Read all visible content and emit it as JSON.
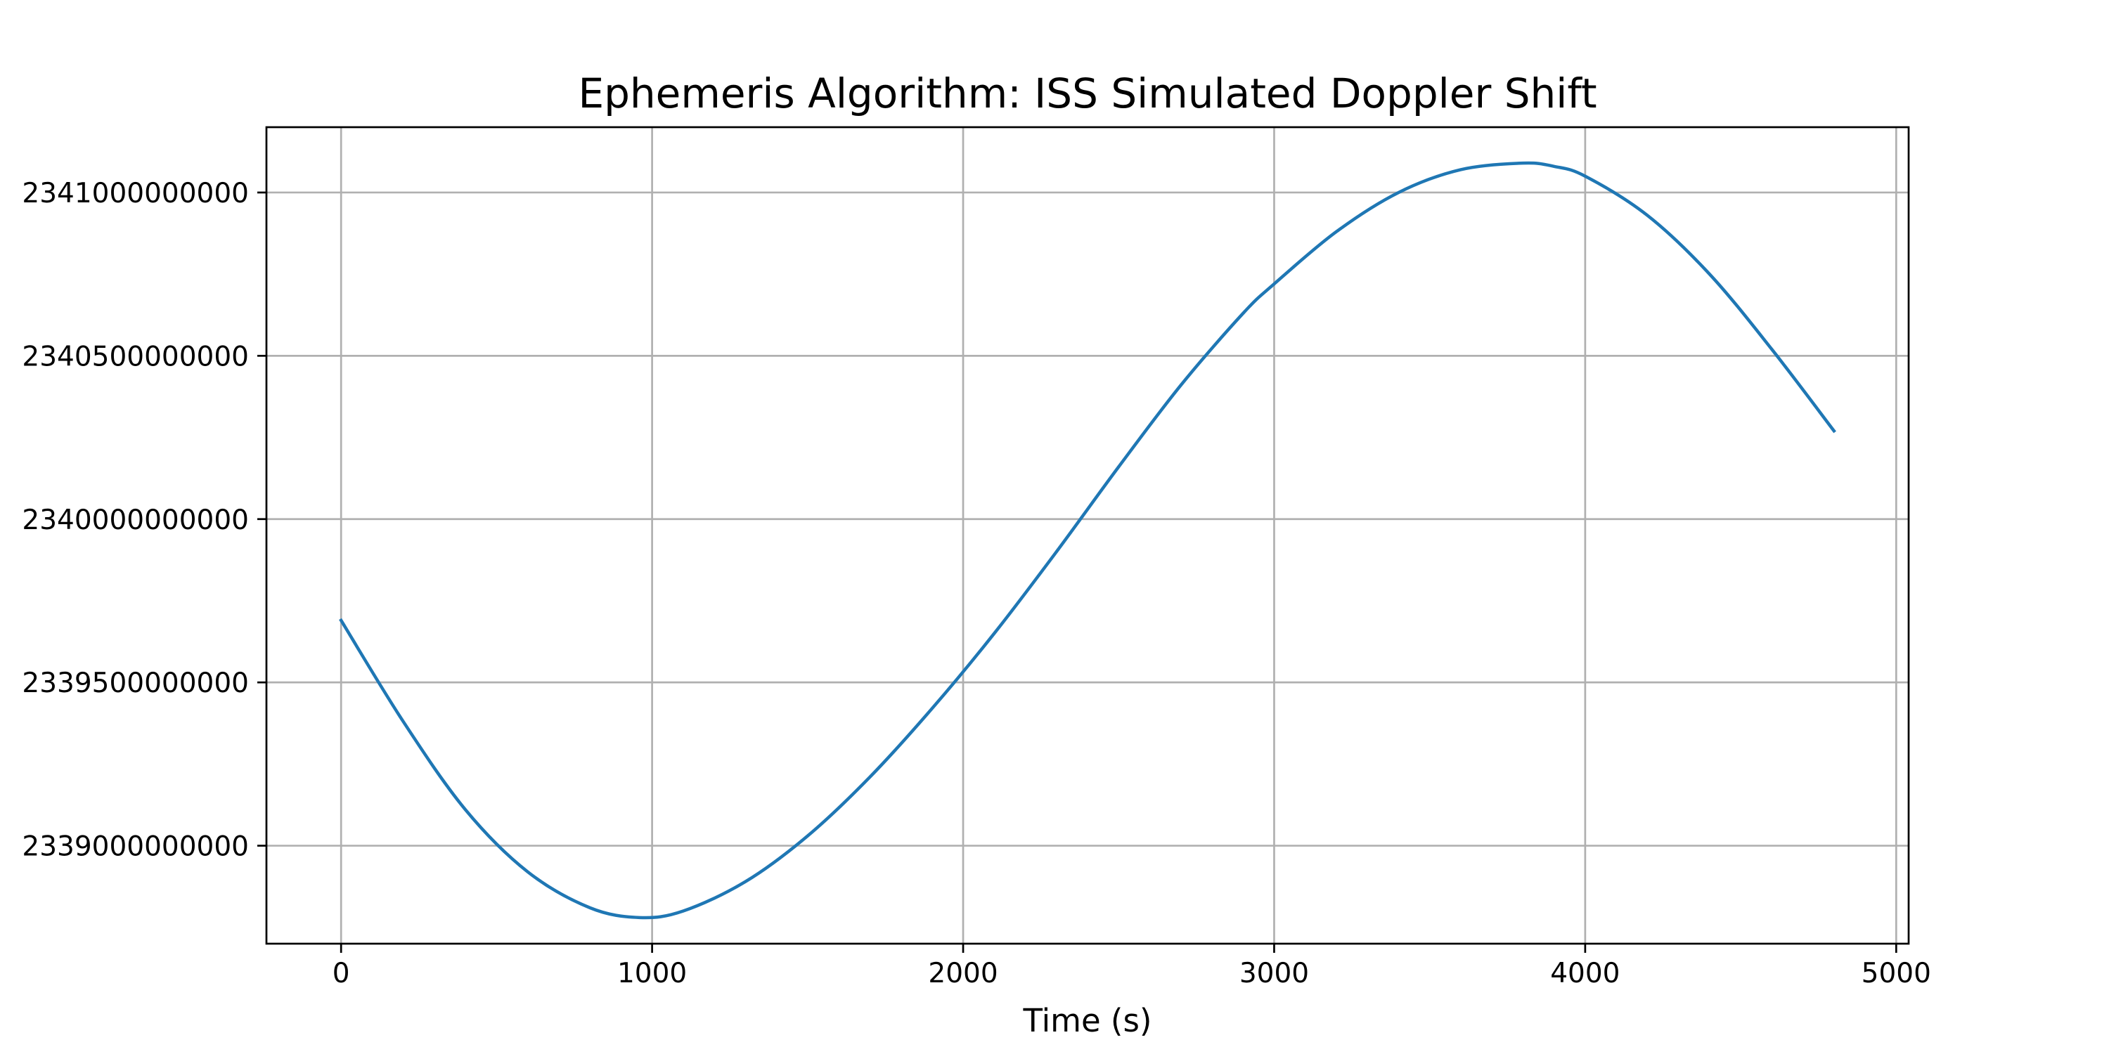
{
  "chart_data": {
    "type": "line",
    "title": "Ephemeris Algorithm: ISS Simulated Doppler Shift",
    "xlabel": "Time (s)",
    "ylabel": "",
    "xlim": [
      -240,
      5040
    ],
    "ylim": [
      2338700000000,
      2341200000000
    ],
    "x_ticks": [
      0,
      1000,
      2000,
      3000,
      4000,
      5000
    ],
    "y_ticks": [
      2339000000000,
      2339500000000,
      2340000000000,
      2340500000000,
      2341000000000
    ],
    "x_tick_labels": [
      "0",
      "1000",
      "2000",
      "3000",
      "4000",
      "5000"
    ],
    "y_tick_labels": [
      "2339000000000",
      "2339500000000",
      "2340000000000",
      "2340500000000",
      "2341000000000"
    ],
    "grid": true,
    "legend": "none",
    "series": [
      {
        "color": "#1f77b4",
        "x": [
          0,
          200,
          400,
          600,
          800,
          960,
          1100,
          1300,
          1500,
          1700,
          1900,
          2100,
          2300,
          2500,
          2700,
          2900,
          3000,
          3200,
          3400,
          3600,
          3800,
          3900,
          4000,
          4200,
          4400,
          4600,
          4800
        ],
        "y": [
          2339690000000,
          2339380000000,
          2339110000000,
          2338920000000,
          2338810000000,
          2338780000000,
          2338800000000,
          2338890000000,
          2339030000000,
          2339210000000,
          2339420000000,
          2339650000000,
          2339900000000,
          2340160000000,
          2340410000000,
          2340630000000,
          2340720000000,
          2340880000000,
          2341000000000,
          2341070000000,
          2341090000000,
          2341080000000,
          2341050000000,
          2340930000000,
          2340750000000,
          2340520000000,
          2340270000000
        ]
      }
    ]
  }
}
